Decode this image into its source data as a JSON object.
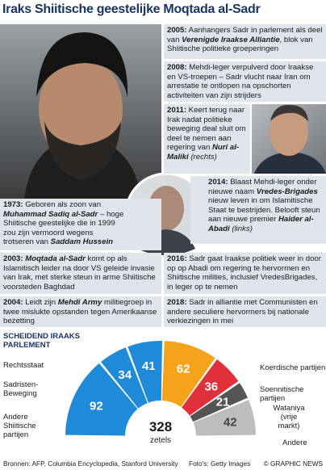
{
  "header": {
    "title": "Iraks Shiitische geestelijke Moqtada al-Sadr"
  },
  "entries": [
    {
      "year": "1973:",
      "parts": [
        {
          "t": " Geboren als zoon van "
        },
        {
          "t": "Muhammad Sadiq al-Sadr",
          "b": true
        },
        {
          "t": " – hoge Shiitische geestelijke die in 1999 zou zijn vermoord wegens trotseren van "
        },
        {
          "t": "Saddam Hussein",
          "b": true
        }
      ]
    },
    {
      "year": "2003:",
      "parts": [
        {
          "t": " "
        },
        {
          "t": "Moqtada al-Sadr",
          "b": true
        },
        {
          "t": " komt op als Islamitisch leider na door VS geleide invasie van Irak, met sterke steun in arme Shiitische voorsteden Baghdad"
        }
      ]
    },
    {
      "year": "2004:",
      "parts": [
        {
          "t": " Leidt zijn "
        },
        {
          "t": "Mehdi Army",
          "b": true
        },
        {
          "t": " militiegroep in twee mislukte opstanden tegen Amerikaanse bezetting"
        }
      ]
    },
    {
      "year": "2005:",
      "parts": [
        {
          "t": " Aanhangers Sadr in parlement als deel van "
        },
        {
          "t": "Verenigde Iraakse Alliantie",
          "b": true
        },
        {
          "t": ", blok van Shiitische politieke groeperingen"
        }
      ]
    },
    {
      "year": "2008:",
      "parts": [
        {
          "t": " Mehdi-leger verpulverd door Iraakse en VS-troepen – Sadr vlucht naar Iran om arrestatie te ontlopen na opschorten activiteiten van zijn strijders"
        }
      ]
    },
    {
      "year": "2011:",
      "parts": [
        {
          "t": " Keert terug naar Irak nadat politieke beweging deal sluit om deel te nemen aan regering van "
        },
        {
          "t": "Nuri al-Maliki",
          "b": true
        },
        {
          "t": " (rechts)",
          "i": true
        }
      ]
    },
    {
      "year": "2014:",
      "parts": [
        {
          "t": " Blaast Mehdi-leger onder nieuwe naam "
        },
        {
          "t": "Vredes-Brigades",
          "b": true
        },
        {
          "t": " nieuw leven in om Islamitische Staat te bestrijden. Belooft steun aan nieuwe premier "
        },
        {
          "t": "Haider al-Abadi",
          "b": true
        },
        {
          "t": " (links)",
          "i": true
        }
      ]
    },
    {
      "year": "2016:",
      "parts": [
        {
          "t": " Sadr gaat Iraakse politiek weer in door op op Abadi om regering te hervormen en Shiitische milities, inclusief VredesBrigades, in leger op te nemen"
        }
      ]
    },
    {
      "year": "2018:",
      "parts": [
        {
          "t": " Sadr in alliantie met Communisten en andere seculiere hervormers bij nationale verkiezingen in mei"
        }
      ]
    }
  ],
  "parliament": {
    "title": "SCHEIDEND IRAAKS PARLEMENT",
    "parties": [
      {
        "name": "Andere Shiitische partijen",
        "seats": 92,
        "color": "#1f8ad8"
      },
      {
        "name": "Sadristen-Beweging",
        "seats": 34,
        "color": "#1f8ad8"
      },
      {
        "name": "Rechtsstaat",
        "seats": 41,
        "color": "#1f8ad8"
      },
      {
        "name": "Koerdische partijen",
        "seats": 62,
        "color": "#f6a31c"
      },
      {
        "name": "Soennitische partijen",
        "seats": 36,
        "color": "#e0303b"
      },
      {
        "name": "Wataniya (vrije markt)",
        "seats": 21,
        "color": "#555555"
      },
      {
        "name": "Andere",
        "seats": 42,
        "color": "#bdbdbd"
      }
    ],
    "total": 328,
    "unit": "zetels"
  },
  "footer": {
    "sources": "Bronnen: AFP, Columbia Encyclopedia, Stanford University",
    "photos": "Foto's: Getty Images",
    "credit": "© GRAPHIC NEWS"
  }
}
